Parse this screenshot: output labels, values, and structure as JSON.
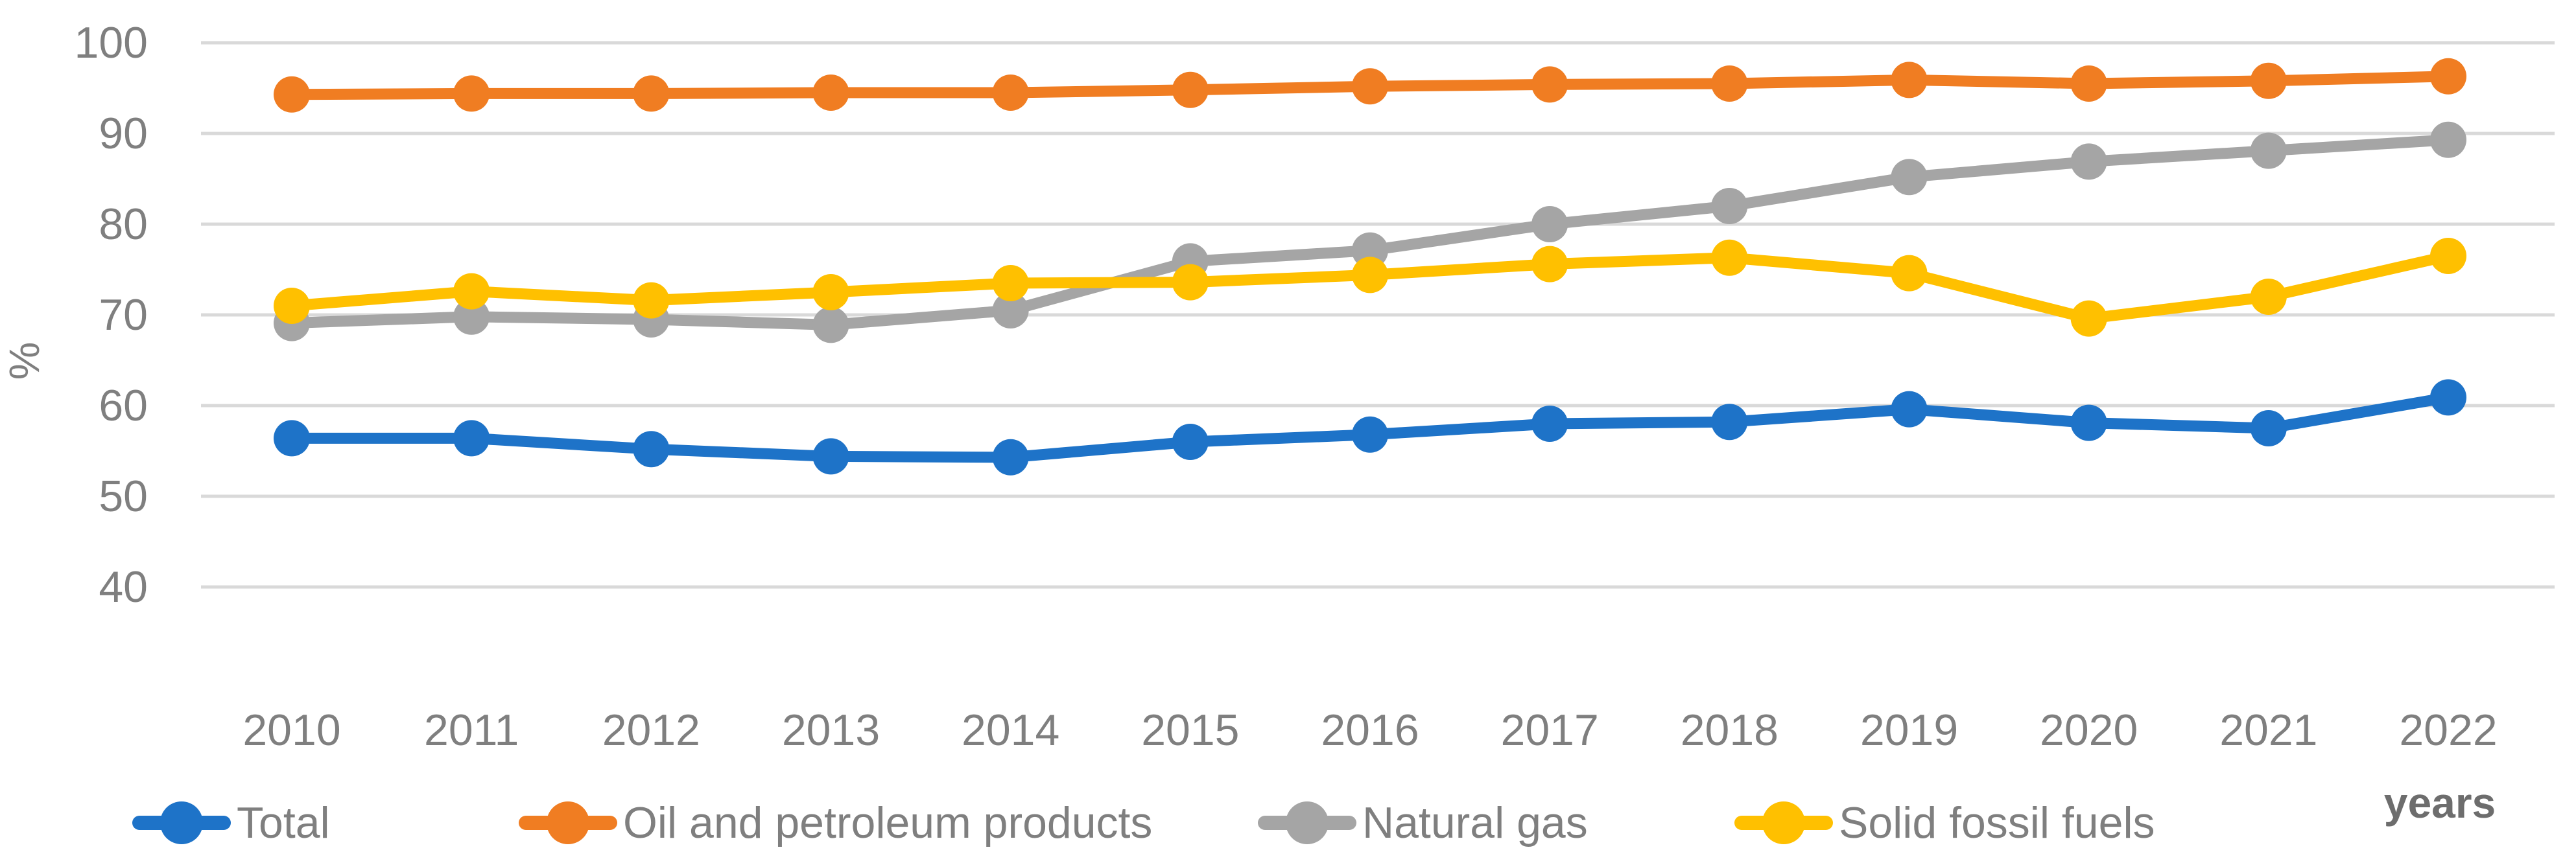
{
  "chart_data": {
    "type": "line",
    "title": "",
    "ylabel": "%",
    "xlabel": "years",
    "categories": [
      "2010",
      "2011",
      "2012",
      "2013",
      "2014",
      "2015",
      "2016",
      "2017",
      "2018",
      "2019",
      "2020",
      "2021",
      "2022"
    ],
    "yticks": [
      100,
      90,
      80,
      70,
      60,
      50,
      40
    ],
    "ylim": [
      40,
      100
    ],
    "grid": true,
    "legend_position": "bottom",
    "series": [
      {
        "name": "Total",
        "color": "#1E73C8",
        "values": [
          56.4,
          56.4,
          55.2,
          54.4,
          54.3,
          56.0,
          56.8,
          58.0,
          58.2,
          59.6,
          58.1,
          57.5,
          60.9
        ]
      },
      {
        "name": "Oil and petroleum products",
        "color": "#F07D22",
        "values": [
          94.3,
          94.4,
          94.4,
          94.5,
          94.5,
          94.8,
          95.2,
          95.4,
          95.5,
          95.9,
          95.5,
          95.8,
          96.3
        ]
      },
      {
        "name": "Natural gas",
        "color": "#A5A5A5",
        "values": [
          69.1,
          69.8,
          69.5,
          68.9,
          70.5,
          75.9,
          77.1,
          80.0,
          82.0,
          85.2,
          86.9,
          88.1,
          89.3
        ]
      },
      {
        "name": "Solid fossil fuels",
        "color": "#FFC000",
        "values": [
          71.0,
          72.6,
          71.6,
          72.5,
          73.5,
          73.6,
          74.4,
          75.6,
          76.3,
          74.6,
          69.6,
          72.0,
          76.5
        ]
      }
    ],
    "colors": {
      "axis_text": "#7F7F7F",
      "gridline": "#D9D9D9",
      "xlabel_text": "#6D6D6D",
      "legend_text": "#7F7F7F"
    }
  }
}
